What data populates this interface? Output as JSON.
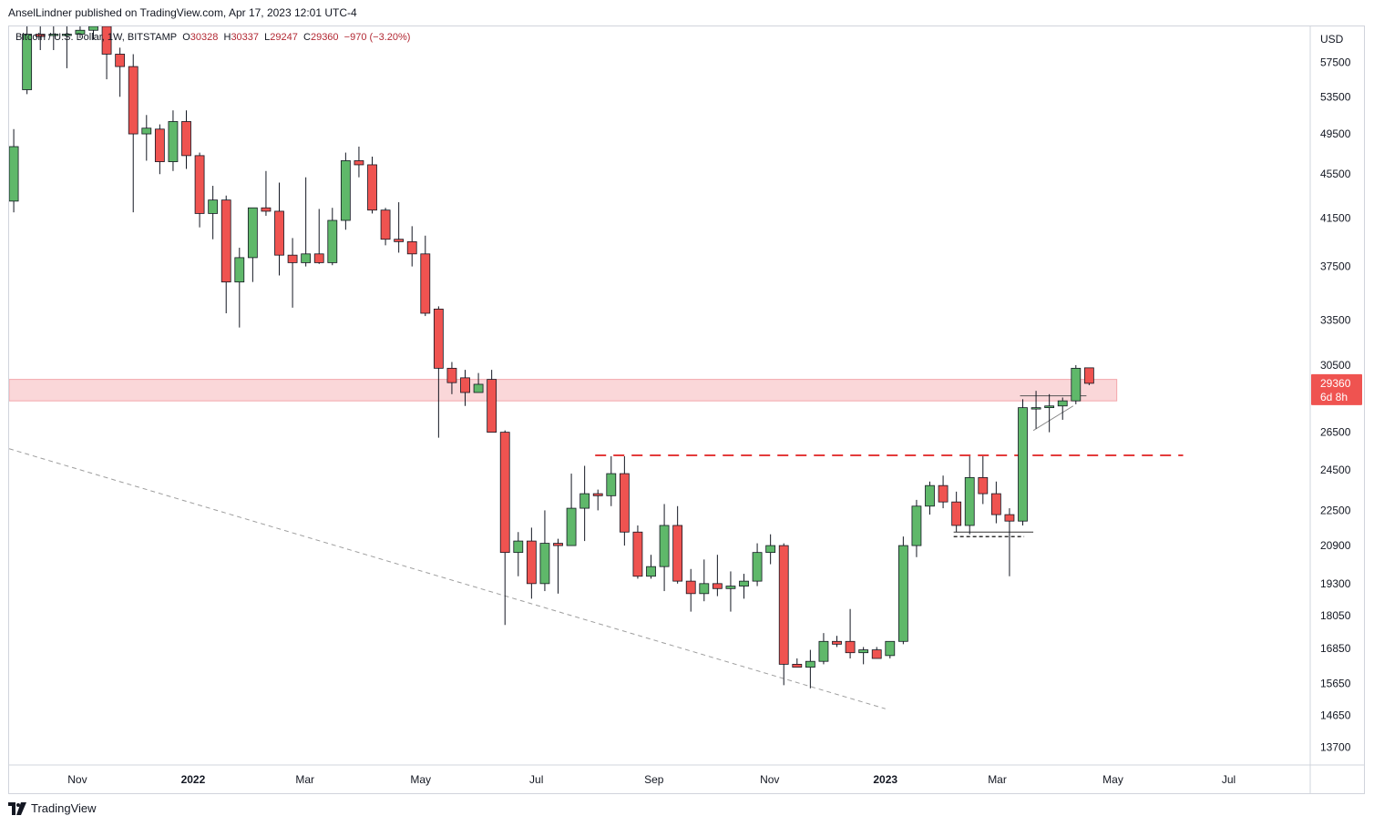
{
  "publish_line": "AnselLindner published on TradingView.com, Apr 17, 2023 12:01 UTC-4",
  "symbol": {
    "name": "Bitcoin / U.S. Dollar, 1W, BITSTAMP",
    "o_label": "O",
    "o_value": "30328",
    "h_label": "H",
    "h_value": "30337",
    "l_label": "L",
    "l_value": "29247",
    "c_label": "C",
    "c_value": "29360",
    "change": "−970 (−3.20%)"
  },
  "current_price_tag": {
    "price": "29360",
    "countdown": "6d 8h"
  },
  "footer": {
    "brand": "TradingView"
  },
  "colors": {
    "up": "#5fb86a",
    "down": "#ef5350",
    "zone": "#f8c9cc",
    "resistance": "#e33b3b"
  },
  "chart_data": {
    "type": "candlestick",
    "currency": "USD",
    "interval": "1W",
    "y_scale": "log",
    "ylim": [
      13200,
      62000
    ],
    "y_ticks": [
      57500,
      53500,
      49500,
      45500,
      41500,
      37500,
      33500,
      30500,
      26500,
      24500,
      22500,
      20900,
      19300,
      18050,
      16850,
      15650,
      14650,
      13700
    ],
    "y_tick_labels": [
      "57500",
      "53500",
      "49500",
      "45500",
      "41500",
      "37500",
      "33500",
      "30500",
      "26500",
      "24500",
      "22500",
      "20900",
      "19300",
      "18050",
      "16850",
      "15650",
      "14650",
      "13700"
    ],
    "x_tick_labels": [
      "Nov",
      "2022",
      "Mar",
      "May",
      "Jul",
      "Sep",
      "Nov",
      "2023",
      "Mar",
      "May",
      "Jul"
    ],
    "x_tick_dates": [
      "2021-11-01",
      "2022-01-01",
      "2022-03-01",
      "2022-05-01",
      "2022-07-01",
      "2022-09-01",
      "2022-11-01",
      "2023-01-01",
      "2023-03-01",
      "2023-05-01",
      "2023-07-01"
    ],
    "x_range": [
      "2021-09-26",
      "2023-08-13"
    ],
    "candles": [
      {
        "date": "2021-09-27",
        "o": 43000,
        "h": 50000,
        "l": 42000,
        "c": 48200
      },
      {
        "date": "2021-10-04",
        "o": 54300,
        "h": 62000,
        "l": 53800,
        "c": 61000
      },
      {
        "date": "2021-10-11",
        "o": 61000,
        "h": 62000,
        "l": 59000,
        "c": 60700
      },
      {
        "date": "2021-10-18",
        "o": 61000,
        "h": 62000,
        "l": 59000,
        "c": 61000
      },
      {
        "date": "2021-10-25",
        "o": 60900,
        "h": 62000,
        "l": 56800,
        "c": 61000
      },
      {
        "date": "2021-11-01",
        "o": 61000,
        "h": 62000,
        "l": 60500,
        "c": 61500
      },
      {
        "date": "2021-11-08",
        "o": 61500,
        "h": 62000,
        "l": 60300,
        "c": 62000
      },
      {
        "date": "2021-11-15",
        "o": 62000,
        "h": 62000,
        "l": 55500,
        "c": 58500
      },
      {
        "date": "2021-11-22",
        "o": 58500,
        "h": 59300,
        "l": 53500,
        "c": 57000
      },
      {
        "date": "2021-11-29",
        "o": 57000,
        "h": 58500,
        "l": 42000,
        "c": 49500
      },
      {
        "date": "2021-12-06",
        "o": 49500,
        "h": 51500,
        "l": 46800,
        "c": 50100
      },
      {
        "date": "2021-12-13",
        "o": 50000,
        "h": 50500,
        "l": 45500,
        "c": 46700
      },
      {
        "date": "2021-12-20",
        "o": 46700,
        "h": 52000,
        "l": 45800,
        "c": 50800
      },
      {
        "date": "2021-12-27",
        "o": 50800,
        "h": 52000,
        "l": 46000,
        "c": 47300
      },
      {
        "date": "2022-01-03",
        "o": 47300,
        "h": 47600,
        "l": 40700,
        "c": 41900
      },
      {
        "date": "2022-01-10",
        "o": 41900,
        "h": 44400,
        "l": 39700,
        "c": 43100
      },
      {
        "date": "2022-01-17",
        "o": 43100,
        "h": 43500,
        "l": 34000,
        "c": 36300
      },
      {
        "date": "2022-01-24",
        "o": 36300,
        "h": 39000,
        "l": 33000,
        "c": 38200
      },
      {
        "date": "2022-01-31",
        "o": 38200,
        "h": 42300,
        "l": 36300,
        "c": 42400
      },
      {
        "date": "2022-02-07",
        "o": 42400,
        "h": 45800,
        "l": 41700,
        "c": 42100
      },
      {
        "date": "2022-02-14",
        "o": 42100,
        "h": 44700,
        "l": 36800,
        "c": 38400
      },
      {
        "date": "2022-02-21",
        "o": 38400,
        "h": 39800,
        "l": 34400,
        "c": 37800
      },
      {
        "date": "2022-02-28",
        "o": 37800,
        "h": 45200,
        "l": 37500,
        "c": 38500
      },
      {
        "date": "2022-03-07",
        "o": 38500,
        "h": 42300,
        "l": 37700,
        "c": 37800
      },
      {
        "date": "2022-03-14",
        "o": 37800,
        "h": 42400,
        "l": 37600,
        "c": 41300
      },
      {
        "date": "2022-03-21",
        "o": 41300,
        "h": 47600,
        "l": 40500,
        "c": 46800
      },
      {
        "date": "2022-03-28",
        "o": 46800,
        "h": 48200,
        "l": 45200,
        "c": 46400
      },
      {
        "date": "2022-04-04",
        "o": 46400,
        "h": 47200,
        "l": 41900,
        "c": 42200
      },
      {
        "date": "2022-04-11",
        "o": 42200,
        "h": 42400,
        "l": 39200,
        "c": 39700
      },
      {
        "date": "2022-04-18",
        "o": 39700,
        "h": 42900,
        "l": 38600,
        "c": 39500
      },
      {
        "date": "2022-04-25",
        "o": 39500,
        "h": 40800,
        "l": 37500,
        "c": 38500
      },
      {
        "date": "2022-05-02",
        "o": 38500,
        "h": 40000,
        "l": 33800,
        "c": 34000
      },
      {
        "date": "2022-05-09",
        "o": 34300,
        "h": 34500,
        "l": 26200,
        "c": 30300
      },
      {
        "date": "2022-05-16",
        "o": 30300,
        "h": 30700,
        "l": 28700,
        "c": 29400
      },
      {
        "date": "2022-05-23",
        "o": 29700,
        "h": 30200,
        "l": 28000,
        "c": 28800
      },
      {
        "date": "2022-05-30",
        "o": 28800,
        "h": 30000,
        "l": 28900,
        "c": 29300
      },
      {
        "date": "2022-06-06",
        "o": 29600,
        "h": 30200,
        "l": 26500,
        "c": 26500
      },
      {
        "date": "2022-06-13",
        "o": 26500,
        "h": 26600,
        "l": 17700,
        "c": 20600
      },
      {
        "date": "2022-06-20",
        "o": 20600,
        "h": 21500,
        "l": 19600,
        "c": 21100
      },
      {
        "date": "2022-06-27",
        "o": 21100,
        "h": 21700,
        "l": 18700,
        "c": 19300
      },
      {
        "date": "2022-07-04",
        "o": 19300,
        "h": 22500,
        "l": 19000,
        "c": 21000
      },
      {
        "date": "2022-07-11",
        "o": 21000,
        "h": 21200,
        "l": 18900,
        "c": 20900
      },
      {
        "date": "2022-07-18",
        "o": 20900,
        "h": 24300,
        "l": 20900,
        "c": 22600
      },
      {
        "date": "2022-07-25",
        "o": 22600,
        "h": 24700,
        "l": 21100,
        "c": 23300
      },
      {
        "date": "2022-08-01",
        "o": 23300,
        "h": 23500,
        "l": 22500,
        "c": 23200
      },
      {
        "date": "2022-08-08",
        "o": 23200,
        "h": 25200,
        "l": 22700,
        "c": 24300
      },
      {
        "date": "2022-08-15",
        "o": 24300,
        "h": 25200,
        "l": 20900,
        "c": 21500
      },
      {
        "date": "2022-08-22",
        "o": 21500,
        "h": 21800,
        "l": 19500,
        "c": 19600
      },
      {
        "date": "2022-08-29",
        "o": 19600,
        "h": 20500,
        "l": 19500,
        "c": 20000
      },
      {
        "date": "2022-09-05",
        "o": 20000,
        "h": 22800,
        "l": 19000,
        "c": 21800
      },
      {
        "date": "2022-09-12",
        "o": 21800,
        "h": 22700,
        "l": 19300,
        "c": 19400
      },
      {
        "date": "2022-09-19",
        "o": 19400,
        "h": 19900,
        "l": 18200,
        "c": 18900
      },
      {
        "date": "2022-09-26",
        "o": 18900,
        "h": 20300,
        "l": 18600,
        "c": 19300
      },
      {
        "date": "2022-10-03",
        "o": 19300,
        "h": 20500,
        "l": 18800,
        "c": 19100
      },
      {
        "date": "2022-10-10",
        "o": 19100,
        "h": 19800,
        "l": 18200,
        "c": 19200
      },
      {
        "date": "2022-10-17",
        "o": 19200,
        "h": 19700,
        "l": 18700,
        "c": 19400
      },
      {
        "date": "2022-10-24",
        "o": 19400,
        "h": 21000,
        "l": 19200,
        "c": 20600
      },
      {
        "date": "2022-10-31",
        "o": 20600,
        "h": 21400,
        "l": 20100,
        "c": 20900
      },
      {
        "date": "2022-11-07",
        "o": 20900,
        "h": 21000,
        "l": 15600,
        "c": 16300
      },
      {
        "date": "2022-11-14",
        "o": 16300,
        "h": 16500,
        "l": 16200,
        "c": 16200
      },
      {
        "date": "2022-11-21",
        "o": 16200,
        "h": 16800,
        "l": 15500,
        "c": 16400
      },
      {
        "date": "2022-11-28",
        "o": 16400,
        "h": 17400,
        "l": 16300,
        "c": 17100
      },
      {
        "date": "2022-12-05",
        "o": 17100,
        "h": 17300,
        "l": 16900,
        "c": 17000
      },
      {
        "date": "2022-12-12",
        "o": 17100,
        "h": 18300,
        "l": 16500,
        "c": 16700
      },
      {
        "date": "2022-12-19",
        "o": 16700,
        "h": 16900,
        "l": 16300,
        "c": 16800
      },
      {
        "date": "2022-12-26",
        "o": 16800,
        "h": 16900,
        "l": 16500,
        "c": 16500
      },
      {
        "date": "2023-01-02",
        "o": 16600,
        "h": 17100,
        "l": 16500,
        "c": 17100
      },
      {
        "date": "2023-01-09",
        "o": 17100,
        "h": 21300,
        "l": 17000,
        "c": 20900
      },
      {
        "date": "2023-01-16",
        "o": 20900,
        "h": 23000,
        "l": 20400,
        "c": 22700
      },
      {
        "date": "2023-01-23",
        "o": 22700,
        "h": 23900,
        "l": 22300,
        "c": 23700
      },
      {
        "date": "2023-01-30",
        "o": 23700,
        "h": 24200,
        "l": 22600,
        "c": 22900
      },
      {
        "date": "2023-02-06",
        "o": 22900,
        "h": 23400,
        "l": 21500,
        "c": 21800
      },
      {
        "date": "2023-02-13",
        "o": 21800,
        "h": 25200,
        "l": 21400,
        "c": 24100
      },
      {
        "date": "2023-02-20",
        "o": 24100,
        "h": 25200,
        "l": 22800,
        "c": 23300
      },
      {
        "date": "2023-02-27",
        "o": 23300,
        "h": 23900,
        "l": 21900,
        "c": 22300
      },
      {
        "date": "2023-03-06",
        "o": 22300,
        "h": 22600,
        "l": 19600,
        "c": 22000
      },
      {
        "date": "2023-03-13",
        "o": 22000,
        "h": 28400,
        "l": 21800,
        "c": 27900
      },
      {
        "date": "2023-03-20",
        "o": 27900,
        "h": 28900,
        "l": 26700,
        "c": 27900
      },
      {
        "date": "2023-03-27",
        "o": 27900,
        "h": 28700,
        "l": 26500,
        "c": 28000
      },
      {
        "date": "2023-04-03",
        "o": 28000,
        "h": 28500,
        "l": 27200,
        "c": 28300
      },
      {
        "date": "2023-04-10",
        "o": 28300,
        "h": 30500,
        "l": 28100,
        "c": 30300
      },
      {
        "date": "2023-04-17",
        "o": 30328,
        "h": 30337,
        "l": 29247,
        "c": 29360
      }
    ],
    "annotations": {
      "support_zone": {
        "from_date": "2021-09-26",
        "to_date": "2023-05-03",
        "low": 28300,
        "high": 29600
      },
      "resistance_line": {
        "price": 25250,
        "from_date": "2022-08-01",
        "to_date": "2023-06-07",
        "style": "dashed",
        "color": "#e33b3b"
      },
      "trend_line": {
        "from_date": "2021-09-26",
        "from_price": 25600,
        "to_date": "2023-01-01",
        "to_price": 14850,
        "style": "dashed",
        "color": "#9e9e9e"
      },
      "wedge_top": {
        "from_date": "2023-03-13",
        "to_date": "2023-04-17",
        "price": 28600
      },
      "wedge_bottom": {
        "from_date": "2023-03-20",
        "from_price": 26600,
        "to_date": "2023-04-10",
        "to_price": 28000
      },
      "base_level": {
        "from_date": "2023-02-06",
        "to_date": "2023-03-20",
        "price": 21500
      }
    }
  }
}
